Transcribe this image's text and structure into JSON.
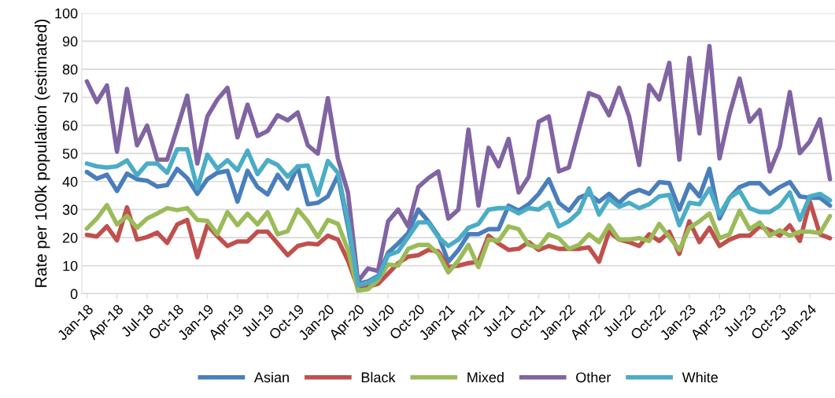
{
  "chart_data": {
    "type": "line",
    "ylabel": "Rate per 100k population (estimated)",
    "categories": [
      "Jan-18",
      null,
      null,
      "Apr-18",
      null,
      null,
      "Jul-18",
      null,
      null,
      "Oct-18",
      null,
      null,
      "Jan-19",
      null,
      null,
      "Apr-19",
      null,
      null,
      "Jul-19",
      null,
      null,
      "Oct-19",
      null,
      null,
      "Jan-20",
      null,
      null,
      "Apr-20",
      null,
      null,
      "Jul-20",
      null,
      null,
      "Oct-20",
      null,
      null,
      "Jan-21",
      null,
      null,
      "Apr-21",
      null,
      null,
      "Jul-21",
      null,
      null,
      "Oct-21",
      null,
      null,
      "Jan-22",
      null,
      null,
      "Apr-22",
      null,
      null,
      "Jul-22",
      null,
      null,
      "Oct-22",
      null,
      null,
      "Jan-23",
      null,
      null,
      "Apr-23",
      null,
      null,
      "Jul-23",
      null,
      null,
      "Oct-23",
      null,
      null,
      "Jan-24",
      null,
      null
    ],
    "series": [
      {
        "name": "Asian",
        "color": "#4a7ebb",
        "values": [
          43.4,
          41,
          42.4,
          36.6,
          42.8,
          40.8,
          40.3,
          38.2,
          38.7,
          44.5,
          41.2,
          35.6,
          40.8,
          43.1,
          43.8,
          32.8,
          43.8,
          38,
          35.4,
          42.4,
          37.5,
          45.4,
          31.9,
          32.4,
          34.7,
          42.2,
          24,
          3.5,
          4.4,
          6.3,
          14.6,
          17.9,
          21.6,
          30,
          25.8,
          20.7,
          11.4,
          15.6,
          21.2,
          21.2,
          23,
          23,
          31.4,
          29.6,
          31.9,
          35.6,
          40.8,
          32.4,
          29.6,
          34.2,
          35.6,
          32.8,
          35.6,
          32.4,
          35.6,
          37,
          35.6,
          39.8,
          39.4,
          30,
          38.9,
          34.7,
          44.5,
          26.8,
          34.2,
          38,
          39.4,
          39.4,
          35.6,
          38,
          39.8,
          34.7,
          34.2,
          34.2,
          31.4
        ]
      },
      {
        "name": "Black",
        "color": "#c0504d",
        "values": [
          21,
          20.4,
          24,
          19,
          30.8,
          19.3,
          20.2,
          21.8,
          18.1,
          24.7,
          26.3,
          13,
          24.4,
          20.5,
          17,
          18.6,
          18.6,
          22.1,
          22.1,
          17.9,
          13.7,
          17,
          17.9,
          17.6,
          20.7,
          19.3,
          11.8,
          2,
          2.5,
          3.5,
          7.2,
          10.9,
          13.2,
          13.7,
          15.6,
          15.1,
          9.5,
          10,
          10.9,
          11.4,
          20.7,
          17.9,
          15.6,
          16,
          18.4,
          15.6,
          17,
          16,
          16,
          16,
          16.5,
          11.4,
          22.1,
          19.3,
          18.4,
          17,
          21.2,
          18.8,
          22.1,
          14.2,
          25.8,
          18.4,
          23.5,
          17,
          19.3,
          20.7,
          20.7,
          24,
          22.6,
          20.7,
          24.4,
          18.8,
          32.8,
          21.2,
          19.8
        ]
      },
      {
        "name": "Mixed",
        "color": "#9bbb59",
        "values": [
          23.2,
          26.8,
          31.6,
          24.7,
          27.7,
          23.5,
          26.8,
          28.6,
          30.5,
          29.8,
          30.5,
          26.3,
          26,
          21.2,
          29.1,
          24.4,
          28.5,
          24.7,
          29.1,
          21.2,
          22.3,
          30,
          25.8,
          20.2,
          26.3,
          24.9,
          15.6,
          1.1,
          1.6,
          4.9,
          10.4,
          10,
          16,
          17.4,
          17.4,
          14.2,
          7.6,
          11.8,
          17.4,
          9.5,
          19.3,
          18.8,
          24,
          23,
          17.4,
          16.5,
          21.2,
          19.8,
          16,
          17.4,
          21.2,
          18.4,
          24.4,
          19.3,
          19.3,
          19.8,
          18.8,
          24.9,
          20.2,
          15.6,
          23.5,
          25.8,
          28.6,
          19.8,
          21.2,
          29.6,
          23,
          25.4,
          20.7,
          22.6,
          20.7,
          22.1,
          22.1,
          21.6,
          27.7
        ]
      },
      {
        "name": "Other",
        "color": "#8064a2",
        "values": [
          75.7,
          68.3,
          74.2,
          50.6,
          73,
          52.9,
          59.9,
          47.8,
          47.8,
          59,
          70.6,
          46.4,
          63.2,
          69.2,
          73.4,
          55.7,
          67.4,
          56.2,
          58,
          63.6,
          61.8,
          64.6,
          52.9,
          49.9,
          69.7,
          48.2,
          36.1,
          4.4,
          9,
          8.1,
          25.8,
          30,
          24,
          38,
          41.2,
          43.6,
          26.8,
          30,
          58.5,
          31.4,
          52,
          45.4,
          55.2,
          36.1,
          41.7,
          61.3,
          63.2,
          43.6,
          45,
          58.5,
          71.5,
          70.1,
          63.6,
          73.4,
          63.2,
          45.9,
          74.3,
          69.2,
          82.3,
          47.8,
          84.1,
          57.1,
          88.3,
          48.2,
          64.1,
          76.7,
          61.3,
          65.5,
          43.6,
          52.4,
          71.9,
          50.1,
          54.3,
          62.2,
          40.8
        ]
      },
      {
        "name": "White",
        "color": "#4bacc6",
        "values": [
          46.4,
          45.4,
          45,
          45.4,
          47.5,
          42.2,
          46.4,
          46.4,
          43.1,
          51.5,
          51.5,
          37.5,
          49.6,
          44.5,
          47.6,
          44,
          51,
          42.6,
          47.6,
          45.9,
          41.7,
          45.4,
          45.7,
          35.2,
          47.3,
          43.1,
          25.9,
          3,
          3.9,
          5.8,
          13.7,
          15.1,
          20.2,
          25.4,
          25.4,
          20.2,
          17,
          19.3,
          23.5,
          24.9,
          30,
          30.5,
          30.5,
          28.6,
          30.5,
          30,
          32.4,
          24,
          25.8,
          29.1,
          37.5,
          28.2,
          33.8,
          31,
          32.4,
          30.5,
          31.9,
          34.7,
          35.2,
          24.4,
          32.4,
          31.9,
          37.5,
          28.2,
          34.2,
          36.6,
          30.5,
          29.1,
          29.1,
          31.4,
          36.1,
          26.3,
          34.7,
          35.6,
          33.3
        ]
      }
    ],
    "ylim": [
      0,
      100
    ],
    "yticks": [
      0,
      10,
      20,
      30,
      40,
      50,
      60,
      70,
      80,
      90,
      100
    ],
    "grid": "y",
    "legend": "bottom",
    "marker": "none",
    "line_style": "solid"
  }
}
